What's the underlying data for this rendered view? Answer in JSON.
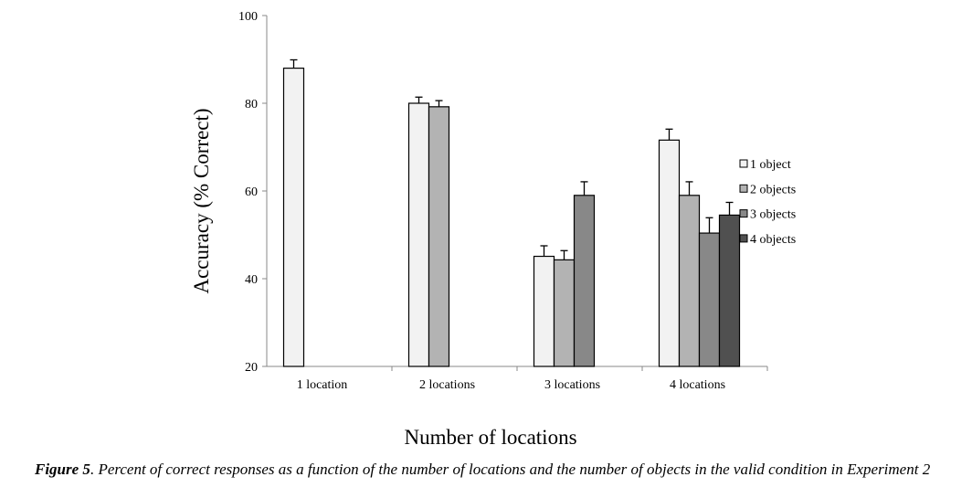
{
  "chart_data": {
    "type": "bar",
    "title": "",
    "xlabel": "Number of locations",
    "ylabel": "Accuracy (% Correct)",
    "ylim": [
      20,
      100
    ],
    "yticks": [
      20,
      40,
      60,
      80,
      100
    ],
    "grid": false,
    "legend_position": "right",
    "categories": [
      "1 location",
      "2 locations",
      "3 locations",
      "4 locations"
    ],
    "series": [
      {
        "name": "1 object",
        "color": "#f2f2f2",
        "values": [
          88.0,
          80.0,
          45.1,
          71.6
        ],
        "errors": [
          1.9,
          1.4,
          2.4,
          2.5
        ]
      },
      {
        "name": "2 objects",
        "color": "#b3b3b3",
        "values": [
          null,
          79.2,
          44.3,
          59.0
        ],
        "errors": [
          null,
          1.4,
          2.1,
          3.1
        ]
      },
      {
        "name": "3 objects",
        "color": "#888888",
        "values": [
          null,
          null,
          59.0,
          50.4
        ],
        "errors": [
          null,
          null,
          3.1,
          3.5
        ]
      },
      {
        "name": "4 objects",
        "color": "#505050",
        "values": [
          null,
          null,
          null,
          54.5
        ],
        "errors": [
          null,
          null,
          null,
          2.9
        ]
      }
    ]
  },
  "caption": {
    "label": "Figure 5",
    "text": ". Percent of correct responses as a function of the number of locations and the number of objects in the valid condition in Experiment 2"
  }
}
